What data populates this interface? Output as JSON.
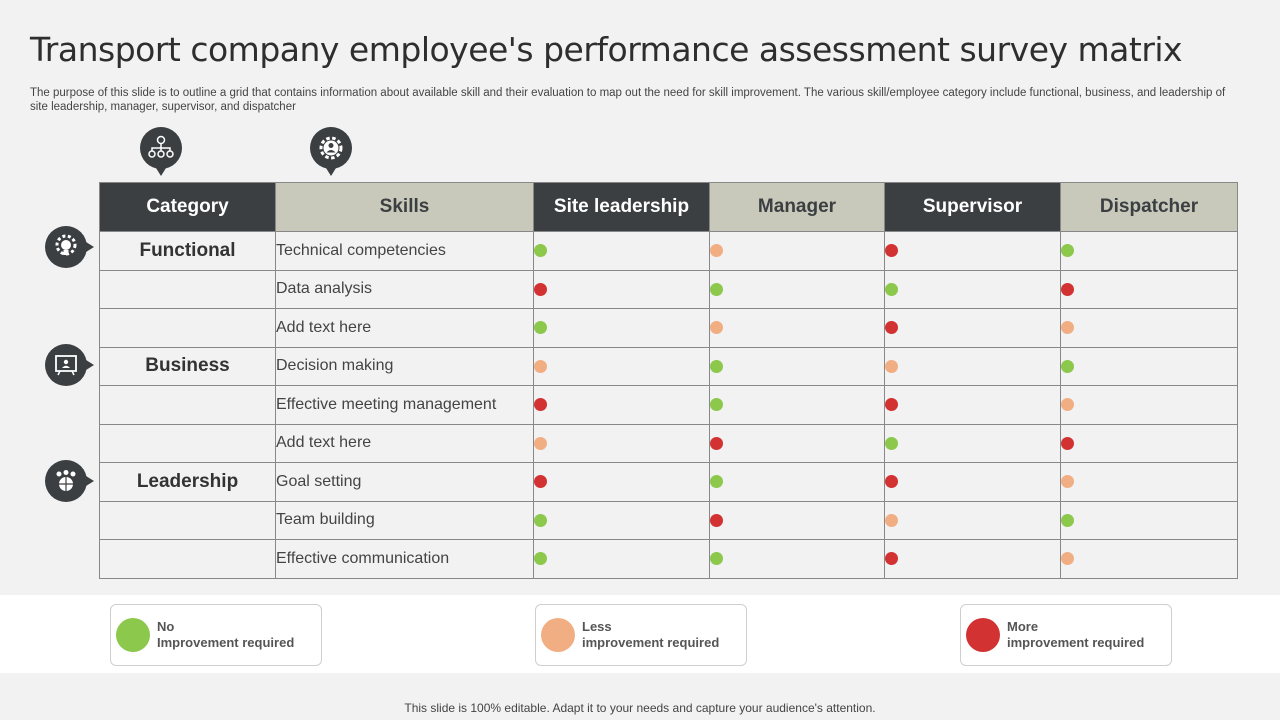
{
  "title": "Transport company employee's performance assessment survey matrix",
  "subtitle": "The purpose of this slide is to outline a grid that contains information about available skill and their evaluation to map out the need for skill improvement. The various skill/employee category include functional, business, and leadership of site leadership, manager, supervisor, and dispatcher",
  "colors": {
    "green": "#8cc84b",
    "orange": "#f2ae83",
    "red": "#d23232",
    "dark": "#3b3f42",
    "light_header": "#c8c8bb"
  },
  "icons": {
    "category_pin": "hierarchy-icon",
    "skills_pin": "gear-person-icon",
    "functional": "gear-bulb-icon",
    "business": "presentation-board-icon",
    "leadership": "team-globe-icon"
  },
  "table": {
    "headers": [
      "Category",
      "Skills",
      "Site leadership",
      "Manager",
      "Supervisor",
      "Dispatcher"
    ],
    "rows": [
      {
        "category": "Functional",
        "skill": "Technical competencies",
        "ratings": [
          "green",
          "orange",
          "red",
          "green"
        ]
      },
      {
        "category": "",
        "skill": "Data analysis",
        "ratings": [
          "red",
          "green",
          "green",
          "red"
        ]
      },
      {
        "category": "",
        "skill": "Add text here",
        "ratings": [
          "green",
          "orange",
          "red",
          "orange"
        ]
      },
      {
        "category": "Business",
        "skill": "Decision making",
        "ratings": [
          "orange",
          "green",
          "orange",
          "green"
        ]
      },
      {
        "category": "",
        "skill": "Effective meeting management",
        "ratings": [
          "red",
          "green",
          "red",
          "orange"
        ]
      },
      {
        "category": "",
        "skill": "Add text here",
        "ratings": [
          "orange",
          "red",
          "green",
          "red"
        ]
      },
      {
        "category": "Leadership",
        "skill": "Goal setting",
        "ratings": [
          "red",
          "green",
          "red",
          "orange"
        ]
      },
      {
        "category": "",
        "skill": "Team building",
        "ratings": [
          "green",
          "red",
          "orange",
          "green"
        ]
      },
      {
        "category": "",
        "skill": "Effective communication",
        "ratings": [
          "green",
          "green",
          "red",
          "orange"
        ]
      }
    ]
  },
  "legend": [
    {
      "color": "green",
      "line1": "No",
      "line2": "Improvement required"
    },
    {
      "color": "orange",
      "line1": "Less",
      "line2": "improvement required"
    },
    {
      "color": "red",
      "line1": "More",
      "line2": "improvement required"
    }
  ],
  "footer": "This slide is 100% editable. Adapt it to your needs and capture your audience's attention."
}
